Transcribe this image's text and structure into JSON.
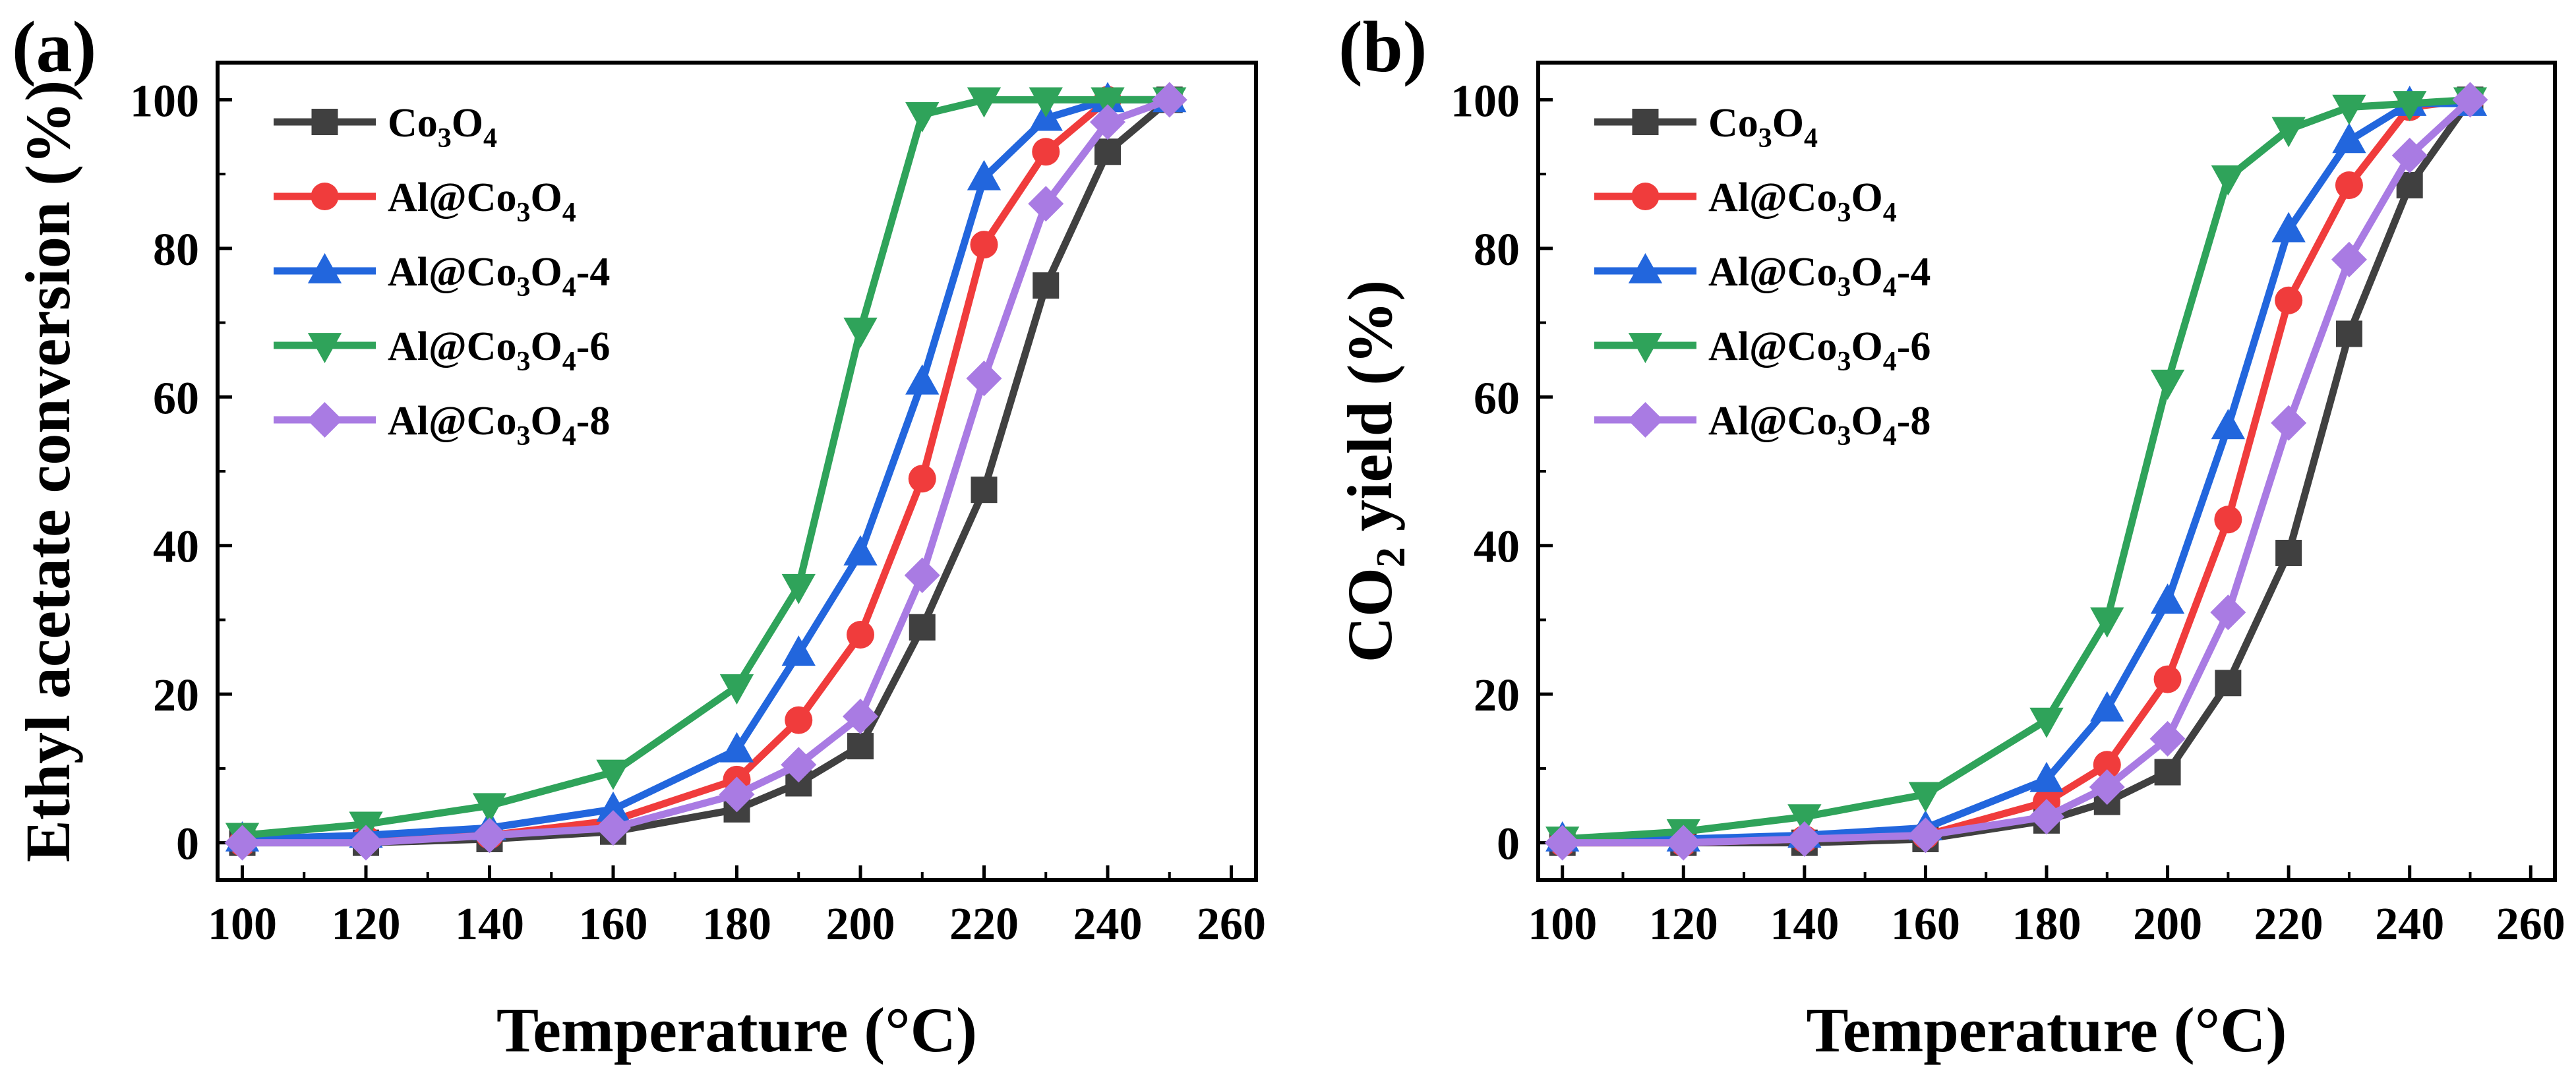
{
  "chart_data": [
    {
      "type": "line",
      "panel_label": "(a)",
      "xlabel": "Temperature (°C)",
      "ylabel": "Ethyl acetate conversion (%)",
      "xlim": [
        96,
        264
      ],
      "ylim": [
        -5,
        105
      ],
      "xticks": [
        100,
        120,
        140,
        160,
        180,
        200,
        220,
        240,
        260
      ],
      "yticks": [
        0,
        20,
        40,
        60,
        80,
        100
      ],
      "xtick_labels": [
        "100",
        "120",
        "140",
        "160",
        "180",
        "200",
        "220",
        "240",
        "260"
      ],
      "ytick_labels": [
        "0",
        "20",
        "40",
        "60",
        "80",
        "100"
      ],
      "legend_position": "top-left",
      "x": [
        100,
        120,
        140,
        160,
        180,
        190,
        200,
        210,
        220,
        230,
        240,
        250
      ],
      "series": [
        {
          "name": "Co3O4",
          "base": "Co",
          "sub1": "3",
          "mid": "O",
          "sub2": "4",
          "suffix": "",
          "color": "#404040",
          "marker": "square",
          "values": [
            0,
            0,
            0.5,
            1.5,
            4.5,
            8,
            13,
            29,
            47.5,
            75,
            93,
            100
          ]
        },
        {
          "name": "Al@Co3O4",
          "base": "Al@Co",
          "sub1": "3",
          "mid": "O",
          "sub2": "4",
          "suffix": "",
          "color": "#f03c3c",
          "marker": "circle",
          "values": [
            0,
            0.5,
            1,
            3,
            8.5,
            16.5,
            28,
            49,
            80.5,
            93,
            100,
            100
          ]
        },
        {
          "name": "Al@Co3O4-4",
          "base": "Al@Co",
          "sub1": "3",
          "mid": "O",
          "sub2": "4",
          "suffix": "-4",
          "color": "#2266dd",
          "marker": "triangle-up",
          "values": [
            0.5,
            1,
            2,
            4.5,
            12.5,
            25.5,
            39,
            62,
            89.5,
            97.5,
            100,
            100
          ]
        },
        {
          "name": "Al@Co3O4-6",
          "base": "Al@Co",
          "sub1": "3",
          "mid": "O",
          "sub2": "4",
          "suffix": "-6",
          "color": "#2fa35a",
          "marker": "triangle-down",
          "values": [
            1,
            2.5,
            5,
            9.5,
            21,
            34.5,
            69,
            98,
            100,
            100,
            100,
            100
          ]
        },
        {
          "name": "Al@Co3O4-8",
          "base": "Al@Co",
          "sub1": "3",
          "mid": "O",
          "sub2": "4",
          "suffix": "-8",
          "color": "#a97be3",
          "marker": "diamond",
          "values": [
            0,
            0,
            1,
            2,
            6.5,
            10.5,
            17,
            36,
            62.5,
            86,
            97,
            100
          ]
        }
      ]
    },
    {
      "type": "line",
      "panel_label": "(b)",
      "xlabel": "Temperature (°C)",
      "ylabel": "CO2 yield (%)",
      "ylabel_parts": {
        "pre": "CO",
        "sub": "2",
        "post": " yield (%)"
      },
      "xlim": [
        96,
        264
      ],
      "ylim": [
        -5,
        105
      ],
      "xticks": [
        100,
        120,
        140,
        160,
        180,
        200,
        220,
        240,
        260
      ],
      "yticks": [
        0,
        20,
        40,
        60,
        80,
        100
      ],
      "xtick_labels": [
        "100",
        "120",
        "140",
        "160",
        "180",
        "200",
        "220",
        "240",
        "260"
      ],
      "ytick_labels": [
        "0",
        "20",
        "40",
        "60",
        "80",
        "100"
      ],
      "legend_position": "top-left",
      "x": [
        100,
        120,
        140,
        160,
        180,
        190,
        200,
        210,
        220,
        230,
        240,
        250
      ],
      "series": [
        {
          "name": "Co3O4",
          "base": "Co",
          "sub1": "3",
          "mid": "O",
          "sub2": "4",
          "suffix": "",
          "color": "#404040",
          "marker": "square",
          "values": [
            0,
            0,
            0,
            0.5,
            3,
            5.5,
            9.5,
            21.5,
            39,
            68.5,
            88.5,
            100
          ]
        },
        {
          "name": "Al@Co3O4",
          "base": "Al@Co",
          "sub1": "3",
          "mid": "O",
          "sub2": "4",
          "suffix": "",
          "color": "#f03c3c",
          "marker": "circle",
          "values": [
            0,
            0,
            0.5,
            1,
            5.5,
            10.5,
            22,
            43.5,
            73,
            88.5,
            99,
            100
          ]
        },
        {
          "name": "Al@Co3O4-4",
          "base": "Al@Co",
          "sub1": "3",
          "mid": "O",
          "sub2": "4",
          "suffix": "-4",
          "color": "#2266dd",
          "marker": "triangle-up",
          "values": [
            0.5,
            0.5,
            1,
            2,
            8.5,
            18,
            32.5,
            56,
            82.5,
            94.5,
            99.5,
            99.5
          ]
        },
        {
          "name": "Al@Co3O4-6",
          "base": "Al@Co",
          "sub1": "3",
          "mid": "O",
          "sub2": "4",
          "suffix": "-6",
          "color": "#2fa35a",
          "marker": "triangle-down",
          "values": [
            0.5,
            1.5,
            3.5,
            6.5,
            16.5,
            30,
            62,
            89.5,
            96,
            99,
            99.5,
            100
          ]
        },
        {
          "name": "Al@Co3O4-8",
          "base": "Al@Co",
          "sub1": "3",
          "mid": "O",
          "sub2": "4",
          "suffix": "-8",
          "color": "#a97be3",
          "marker": "diamond",
          "values": [
            0,
            0,
            0.5,
            1,
            3.5,
            7.5,
            14,
            31,
            56.5,
            78.5,
            92.5,
            100
          ]
        }
      ]
    }
  ]
}
